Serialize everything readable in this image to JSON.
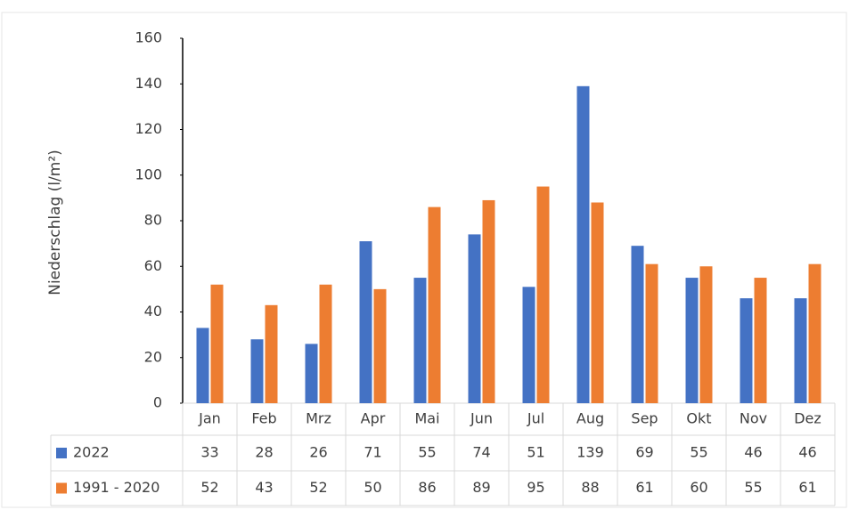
{
  "chart_data": {
    "type": "bar",
    "y_axis_label": "Niederschlag (l/m²)",
    "categories": [
      "Jan",
      "Feb",
      "Mrz",
      "Apr",
      "Mai",
      "Jun",
      "Jul",
      "Aug",
      "Sep",
      "Okt",
      "Nov",
      "Dez"
    ],
    "series": [
      {
        "name": "2022",
        "color": "#4472c4",
        "values": [
          33,
          28,
          26,
          71,
          55,
          74,
          51,
          139,
          69,
          55,
          46,
          46
        ]
      },
      {
        "name": "1991 - 2020",
        "color": "#ed7d31",
        "values": [
          52,
          43,
          52,
          50,
          86,
          89,
          95,
          88,
          61,
          60,
          55,
          61
        ]
      }
    ],
    "ylim": [
      0,
      160
    ],
    "yticks": [
      0,
      20,
      40,
      60,
      80,
      100,
      120,
      140,
      160
    ],
    "data_table": true
  }
}
